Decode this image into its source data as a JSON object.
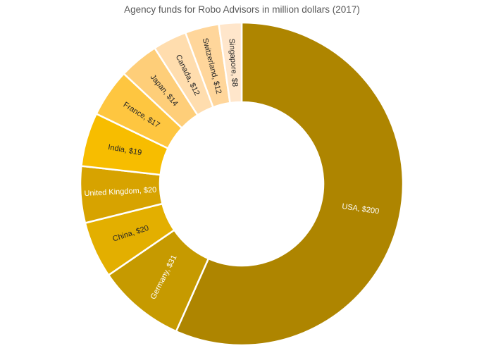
{
  "chart_data": {
    "type": "pie",
    "subtype": "doughnut",
    "title": "Agency funds for Robo Advisors in million dollars (2017)",
    "categories": [
      "USA",
      "Germany",
      "China",
      "United Kingdom",
      "India",
      "France",
      "Japan",
      "Canada",
      "Switzerland",
      "Singapore"
    ],
    "values": [
      200,
      31,
      20,
      20,
      19,
      17,
      14,
      12,
      12,
      8
    ],
    "labels": [
      "USA, $200",
      "Germany, $31",
      "China, $20",
      "United Kingdom, $20",
      "India, $19",
      "France, $17",
      "Japan, $14",
      "Canada, $12",
      "Switzerland, $12",
      "Singapore, $8"
    ],
    "colors": [
      "#AE8500",
      "#C69A00",
      "#E3AF00",
      "#D7A300",
      "#F7BD00",
      "#FEC640",
      "#FECE79",
      "#FFDDAE",
      "#FFD69B",
      "#FFE6CB"
    ],
    "label_colors": [
      "#ffffff",
      "#ffffff",
      "#262626",
      "#ffffff",
      "#262626",
      "#262626",
      "#262626",
      "#262626",
      "#262626",
      "#262626"
    ],
    "unit": "million dollars",
    "year": "2017",
    "legend": "none",
    "start_angle_deg": 0,
    "direction": "clockwise"
  }
}
